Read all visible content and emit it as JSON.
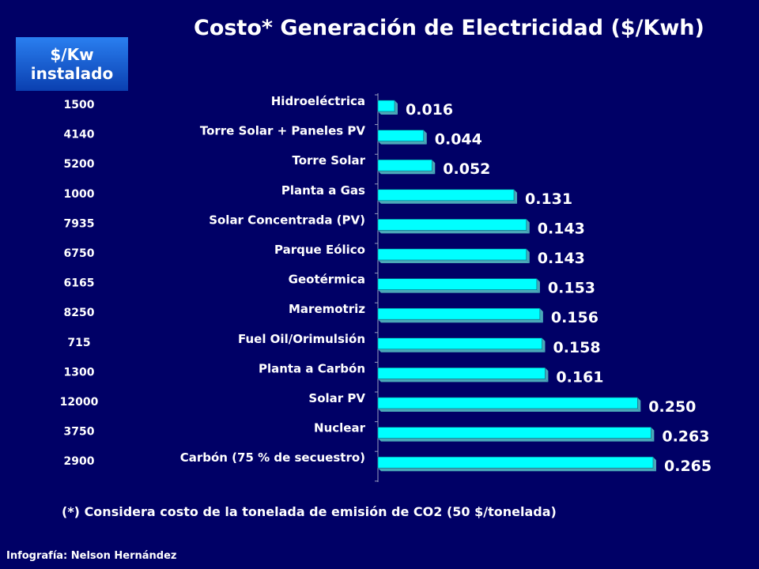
{
  "title": "Costo* Generación de Electricidad ($/Kwh)",
  "kw_header": {
    "line1": "$/Kw",
    "line2": "instalado"
  },
  "footnote": "(*) Considera costo de la tonelada de emisión de CO2 (50 $/tonelada)",
  "credit": "Infografía: Nelson Hernández",
  "colors": {
    "background": "#000066",
    "bar": "#00ffff",
    "bar_side": "#4aa8b8",
    "header_box": "#1a5fd8"
  },
  "chart_data": {
    "type": "bar",
    "orientation": "horizontal",
    "bar_style": "3d",
    "title": "Costo* Generación de Electricidad ($/Kwh)",
    "categories": [
      "Hidroeléctrica",
      "Torre Solar + Paneles PV",
      "Torre Solar",
      "Planta a Gas",
      "Solar  Concentrada (PV)",
      "Parque Eólico",
      "Geotérmica",
      "Maremotriz",
      "Fuel Oil/Orimulsión",
      "Planta a Carbón",
      "Solar PV",
      "Nuclear",
      "Carbón (75 % de secuestro)"
    ],
    "values": [
      0.016,
      0.044,
      0.052,
      0.131,
      0.143,
      0.143,
      0.153,
      0.156,
      0.158,
      0.161,
      0.25,
      0.263,
      0.265
    ],
    "value_labels": [
      "0.016",
      "0.044",
      "0.052",
      "0.131",
      "0.143",
      "0.143",
      "0.153",
      "0.156",
      "0.158",
      "0.161",
      "0.250",
      "0.263",
      "0.265"
    ],
    "installed_cost_per_kw": [
      "1500",
      "4140",
      "5200",
      "1000",
      "7935",
      "6750",
      "6165",
      "8250",
      "715",
      "1300",
      "12000",
      "3750",
      "2900"
    ],
    "xlim": [
      0,
      0.265
    ],
    "grid": false,
    "legend": false
  }
}
